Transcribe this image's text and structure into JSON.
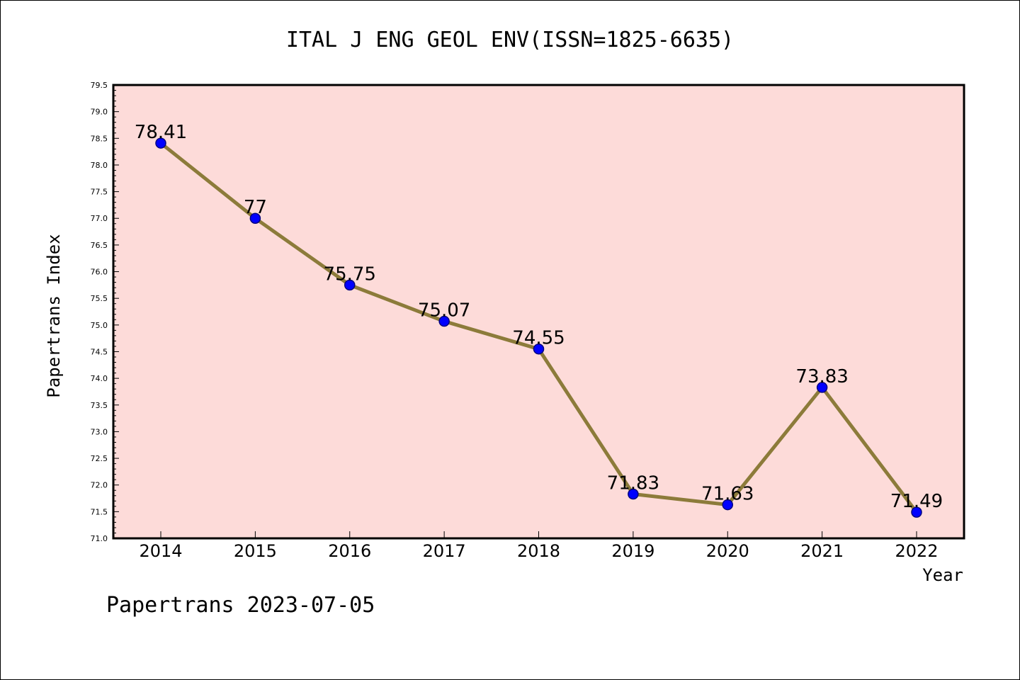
{
  "chart_data": {
    "type": "line",
    "title": "ITAL J ENG GEOL ENV(ISSN=1825-6635)",
    "xlabel": "Year",
    "ylabel": "Papertrans Index",
    "categories": [
      "2014",
      "2015",
      "2016",
      "2017",
      "2018",
      "2019",
      "2020",
      "2021",
      "2022"
    ],
    "series": [
      {
        "values": [
          78.41,
          77,
          75.75,
          75.07,
          74.55,
          71.83,
          71.63,
          73.83,
          71.49
        ],
        "data_labels": [
          "78.41",
          "77",
          "75.75",
          "75.07",
          "74.55",
          "71.83",
          "71.63",
          "73.83",
          "71.49"
        ]
      }
    ],
    "ylim": [
      71.0,
      79.5
    ],
    "yticks": [
      "71.0",
      "71.5",
      "72.0",
      "72.5",
      "73.0",
      "73.5",
      "74.0",
      "74.5",
      "75.0",
      "75.5",
      "76.0",
      "76.5",
      "77.0",
      "77.5",
      "78.0",
      "78.5",
      "79.0",
      "79.5"
    ],
    "grid": false,
    "colors": {
      "plot_background": "#fddbd9",
      "line": "#8c7b3a",
      "marker_fill": "#0000ff",
      "marker_edge": "#000080"
    }
  },
  "footer": "Papertrans 2023-07-05"
}
